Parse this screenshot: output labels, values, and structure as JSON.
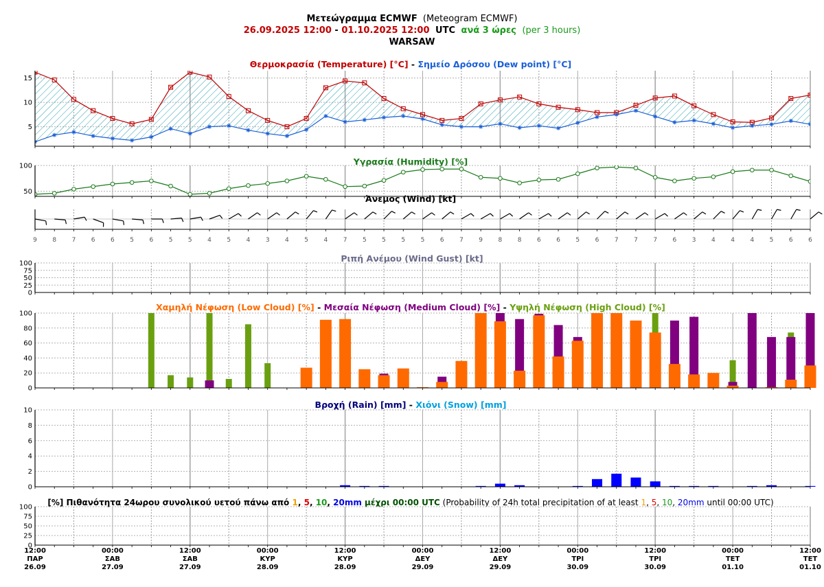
{
  "header": {
    "title_gr": "Μετεώγραμμα ECMWF",
    "title_en": "(Meteogram ECMWF)",
    "date_from": "26.09.2025 12:00",
    "dash": " - ",
    "date_to": "01.10.2025 12:00",
    "utc": "UTC",
    "step_gr": "ανά 3 ώρες",
    "step_en": "(per 3 hours)",
    "city": "WARSAW"
  },
  "colors": {
    "temperature": "#c00000",
    "dewpoint": "#1a5fd6",
    "humidity": "#1a7a1a",
    "wind": "#000000",
    "gust": "#6a6a8a",
    "low_cloud": "#ff6a00",
    "medium_cloud": "#800080",
    "high_cloud": "#6aa010",
    "rain": "#0000ff",
    "rain_title": "#00007a",
    "snow": "#00a0e0",
    "hatch": "#2aa0b0"
  },
  "chart_data": [
    {
      "type": "line",
      "panel": "temperature",
      "title_parts": [
        "Θερμοκρασία (Temperature) [°C]",
        " - ",
        "Σημείο Δρόσου (Dew point) [°C]"
      ],
      "ylim": [
        1,
        16.5
      ],
      "yticks": [
        5,
        10,
        15
      ],
      "series": [
        {
          "name": "Temperature",
          "values": [
            16.2,
            14.6,
            10.6,
            8.3,
            6.7,
            5.6,
            6.5,
            13.1,
            16.2,
            15.2,
            11.2,
            8.3,
            6.3,
            5.0,
            6.7,
            13.0,
            14.4,
            14.0,
            10.8,
            8.7,
            7.5,
            6.3,
            6.7,
            9.7,
            10.5,
            11.1,
            9.7,
            9.0,
            8.5,
            7.9,
            7.9,
            9.4,
            10.9,
            11.3,
            9.3,
            7.5,
            6.0,
            5.9,
            6.8,
            10.8,
            11.5
          ]
        },
        {
          "name": "Dew point",
          "values": [
            1.9,
            3.3,
            3.9,
            3.1,
            2.6,
            2.2,
            2.9,
            4.6,
            3.6,
            5.0,
            5.2,
            4.3,
            3.6,
            3.1,
            4.4,
            7.2,
            6.0,
            6.4,
            6.9,
            7.2,
            6.6,
            5.4,
            5.0,
            5.0,
            5.6,
            4.8,
            5.2,
            4.7,
            5.8,
            7.0,
            7.5,
            8.3,
            7.1,
            5.9,
            6.3,
            5.6,
            4.8,
            5.2,
            5.5,
            6.2,
            5.5
          ]
        }
      ]
    },
    {
      "type": "line",
      "panel": "humidity",
      "title": "Υγρασία (Humidity) [%]",
      "ylim": [
        40,
        100
      ],
      "yticks": [
        50,
        100
      ],
      "series": [
        {
          "name": "Humidity",
          "values": [
            44,
            46,
            54,
            59,
            64,
            67,
            70,
            60,
            44,
            46,
            55,
            61,
            65,
            70,
            79,
            73,
            59,
            60,
            71,
            87,
            92,
            93,
            93,
            77,
            75,
            66,
            72,
            73,
            84,
            95,
            97,
            95,
            77,
            70,
            75,
            78,
            88,
            91,
            91,
            80,
            69
          ]
        }
      ]
    },
    {
      "type": "table",
      "panel": "wind",
      "title": "Άνεμος (Wind) [kt]",
      "speeds": [
        9,
        8,
        7,
        6,
        6,
        5,
        6,
        5,
        5,
        4,
        5,
        4,
        3,
        4,
        5,
        4,
        7,
        5,
        5,
        5,
        5,
        6,
        7,
        9,
        8,
        8,
        6,
        6,
        5,
        6,
        7,
        7,
        7,
        6,
        3,
        4,
        4,
        4,
        5,
        6,
        6
      ],
      "directions": [
        100,
        95,
        80,
        110,
        100,
        95,
        90,
        85,
        80,
        70,
        60,
        55,
        55,
        50,
        40,
        35,
        55,
        50,
        45,
        50,
        55,
        50,
        60,
        60,
        60,
        55,
        60,
        55,
        50,
        45,
        50,
        55,
        60,
        55,
        50,
        45,
        40,
        30,
        30,
        30,
        50
      ]
    },
    {
      "type": "bar",
      "panel": "gust",
      "title": "Ριπή Ανέμου (Wind Gust) [kt]",
      "ylim": [
        0,
        100
      ],
      "yticks": [
        0,
        25,
        50,
        75,
        100
      ],
      "values": []
    },
    {
      "type": "bar",
      "panel": "cloud",
      "title_parts": [
        "Χαμηλή Νέφωση (Low Cloud) [%]",
        " - ",
        "Μεσαία Νέφωση (Medium Cloud) [%]",
        " - ",
        "Υψηλή Νέφωση (High Cloud) [%]"
      ],
      "ylim": [
        0,
        100
      ],
      "yticks": [
        0,
        20,
        40,
        60,
        80,
        100
      ],
      "series": [
        {
          "name": "High Cloud",
          "values": [
            0,
            0,
            0,
            0,
            0,
            0,
            100,
            17,
            14,
            100,
            12,
            85,
            33,
            0,
            0,
            0,
            0,
            0,
            0,
            0,
            0,
            0,
            0,
            0,
            0,
            0,
            0,
            0,
            0,
            0,
            0,
            0,
            100,
            0,
            0,
            0,
            37,
            0,
            0,
            74,
            0
          ]
        },
        {
          "name": "Medium Cloud",
          "values": [
            0,
            0,
            0,
            0,
            0,
            0,
            0,
            0,
            0,
            10,
            0,
            0,
            0,
            0,
            0,
            0,
            0,
            0,
            19,
            0,
            0,
            15,
            0,
            0,
            100,
            92,
            99,
            84,
            68,
            0,
            0,
            0,
            0,
            90,
            95,
            0,
            8,
            100,
            68,
            68,
            100
          ]
        },
        {
          "name": "Low Cloud",
          "values": [
            0,
            0,
            0,
            0,
            0,
            0,
            0,
            0,
            0,
            0,
            0,
            0,
            0,
            0,
            27,
            91,
            92,
            25,
            17,
            26,
            1,
            8,
            36,
            100,
            89,
            23,
            97,
            42,
            63,
            100,
            100,
            90,
            74,
            32,
            18,
            20,
            3,
            0,
            1,
            11,
            30
          ]
        }
      ]
    },
    {
      "type": "bar",
      "panel": "precip",
      "title_parts": [
        "Βροχή (Rain) [mm]",
        " - ",
        "Χιόνι (Snow) [mm]"
      ],
      "ylim": [
        0,
        10
      ],
      "yticks": [
        0,
        2,
        4,
        6,
        8,
        10
      ],
      "series": [
        {
          "name": "Rain",
          "values": [
            0,
            0,
            0,
            0,
            0,
            0,
            0,
            0,
            0,
            0,
            0,
            0,
            0,
            0,
            0,
            0,
            0.2,
            0.1,
            0.1,
            0,
            0,
            0,
            0,
            0.1,
            0.4,
            0.2,
            0,
            0,
            0.1,
            1.0,
            1.7,
            1.2,
            0.7,
            0.1,
            0.1,
            0.1,
            0,
            0.1,
            0.2,
            0,
            0.1
          ]
        },
        {
          "name": "Snow",
          "values": []
        }
      ]
    },
    {
      "type": "bar",
      "panel": "probability",
      "title_parts": [
        "[%] Πιθανότητα 24ωρου συνολικού υετού πάνω από ",
        "1",
        ", ",
        "5",
        ", ",
        "10",
        ", ",
        "20mm",
        " μέχρι 00:00 UTC",
        " (Probability of 24h total precipitation of at least ",
        "1",
        ", ",
        "5",
        ", ",
        "10",
        ", ",
        "20mm",
        " until 00:00 UTC)"
      ],
      "ylim": [
        0,
        100
      ],
      "yticks": [
        0,
        25,
        50,
        75,
        100
      ],
      "values": []
    }
  ],
  "x_axis": {
    "labels": [
      {
        "time": "12:00",
        "day": "ΠΑΡ",
        "date": "26.09"
      },
      {
        "time": "00:00",
        "day": "ΣΑΒ",
        "date": "27.09"
      },
      {
        "time": "12:00",
        "day": "ΣΑΒ",
        "date": "27.09"
      },
      {
        "time": "00:00",
        "day": "ΚΥΡ",
        "date": "28.09"
      },
      {
        "time": "12:00",
        "day": "ΚΥΡ",
        "date": "28.09"
      },
      {
        "time": "00:00",
        "day": "ΔΕΥ",
        "date": "29.09"
      },
      {
        "time": "12:00",
        "day": "ΔΕΥ",
        "date": "29.09"
      },
      {
        "time": "00:00",
        "day": "ΤΡΙ",
        "date": "30.09"
      },
      {
        "time": "12:00",
        "day": "ΤΡΙ",
        "date": "30.09"
      },
      {
        "time": "00:00",
        "day": "ΤΕΤ",
        "date": "01.10"
      },
      {
        "time": "12:00",
        "day": "ΤΕΤ",
        "date": "01.10"
      }
    ]
  }
}
